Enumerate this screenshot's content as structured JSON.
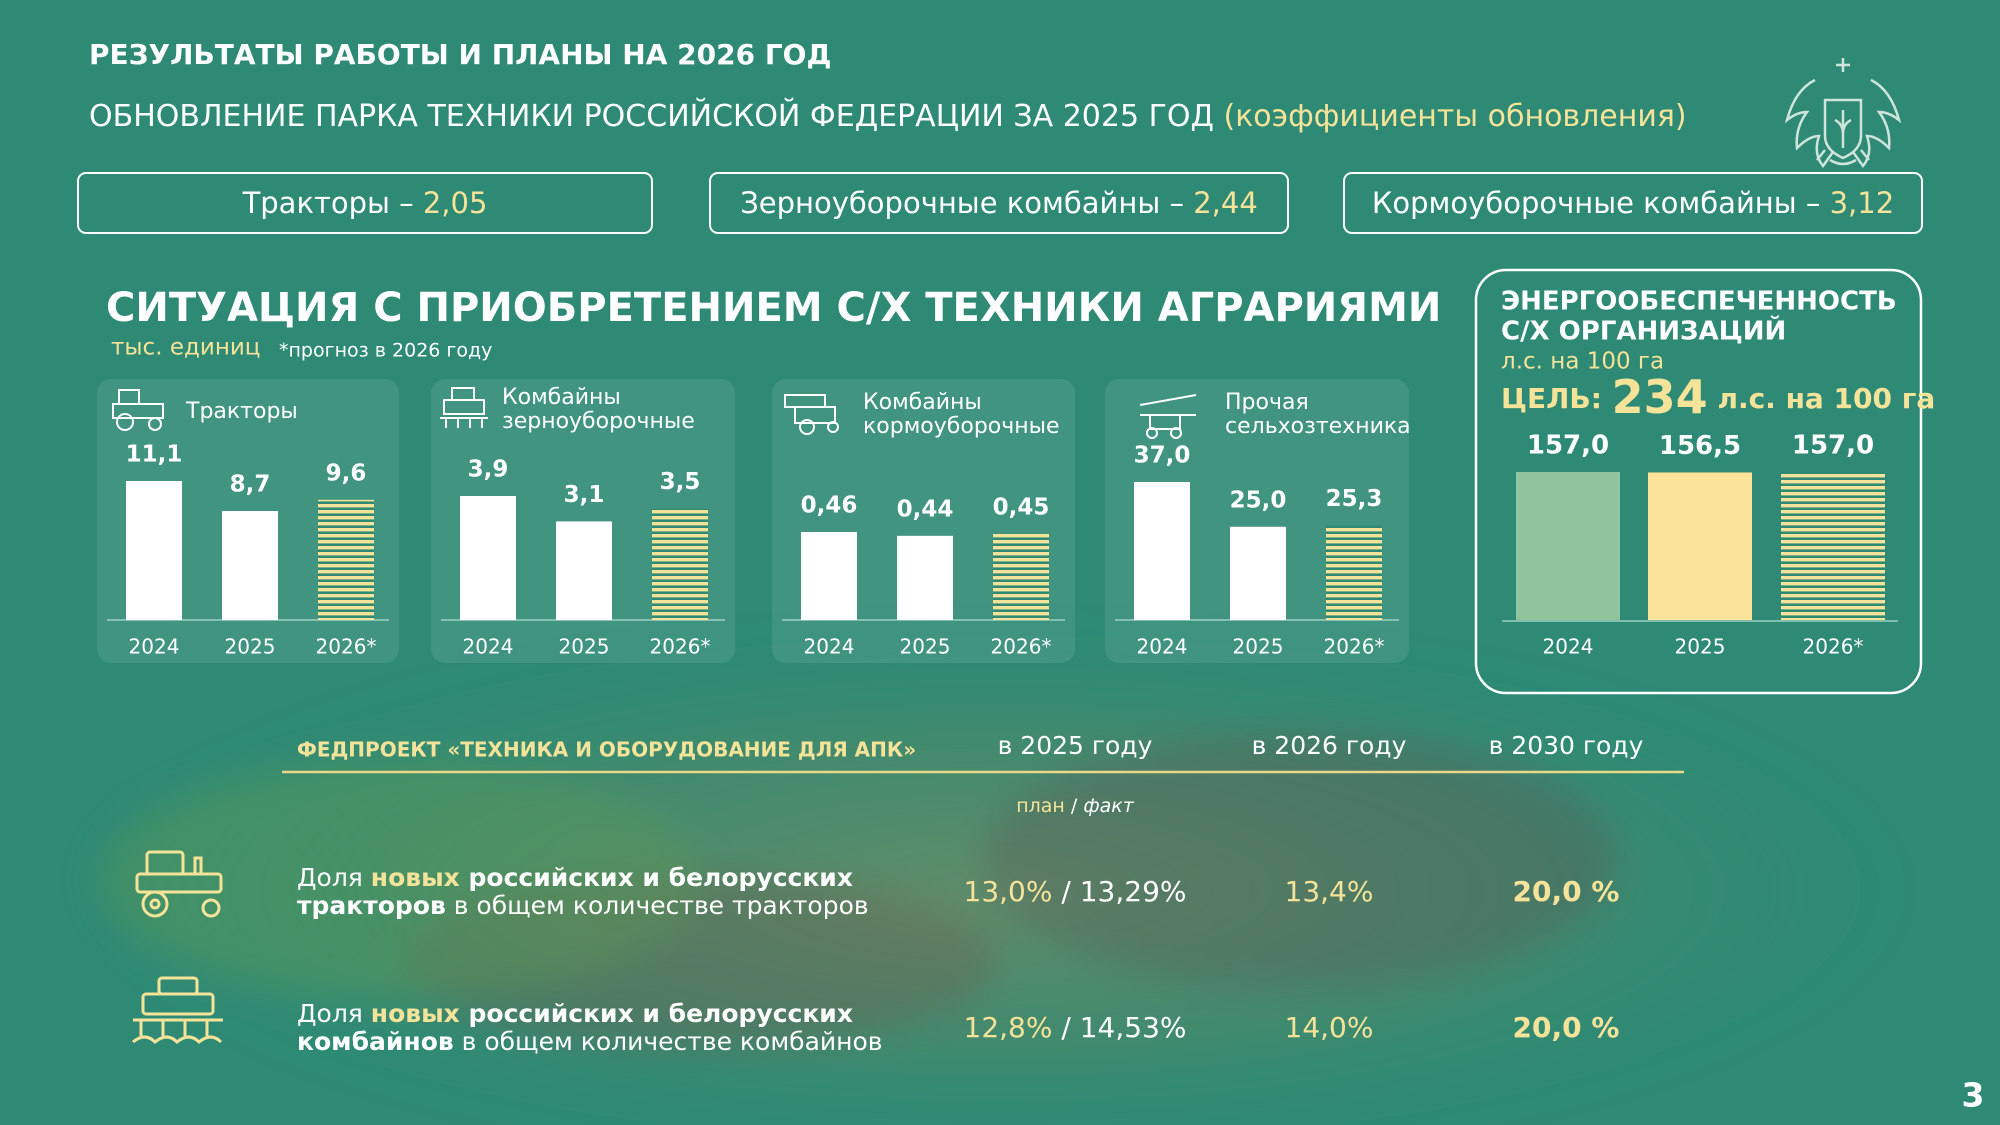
{
  "header": {
    "title": "РЕЗУЛЬТАТЫ РАБОТЫ И ПЛАНЫ НА 2026 ГОД",
    "subtitle": "ОБНОВЛЕНИЕ ПАРКА ТЕХНИКИ РОССИЙСКОЙ ФЕДЕРАЦИИ ЗА 2025 ГОД",
    "subtitle_note": "(коэффициенты обновления)"
  },
  "renewal": [
    {
      "label": "Тракторы –",
      "value": "2,05"
    },
    {
      "label": "Зерноуборочные комбайны –",
      "value": "2,44"
    },
    {
      "label": "Кормоуборочные комбайны –",
      "value": "3,12"
    }
  ],
  "section": {
    "title": "СИТУАЦИЯ С ПРИОБРЕТЕНИЕМ С/Х ТЕХНИКИ АГРАРИЯМИ",
    "unit": "тыс. единиц",
    "note": "*прогноз в 2026 году"
  },
  "chart_data": [
    {
      "type": "bar",
      "title": [
        "Тракторы"
      ],
      "categories": [
        "2024",
        "2025",
        "2026*"
      ],
      "values": [
        11.1,
        8.7,
        9.6
      ],
      "value_labels": [
        "11,1",
        "8,7",
        "9,6"
      ],
      "colors": [
        "#ffffff",
        "#ffffff",
        "#f5e39a"
      ],
      "hatched": [
        false,
        false,
        true
      ]
    },
    {
      "type": "bar",
      "title": [
        "Комбайны",
        "зерноуборочные"
      ],
      "categories": [
        "2024",
        "2025",
        "2026*"
      ],
      "values": [
        3.9,
        3.1,
        3.5
      ],
      "value_labels": [
        "3,9",
        "3,1",
        "3,5"
      ],
      "colors": [
        "#ffffff",
        "#ffffff",
        "#f5e39a"
      ],
      "hatched": [
        false,
        false,
        true
      ]
    },
    {
      "type": "bar",
      "title": [
        "Комбайны",
        "кормоуборочные"
      ],
      "categories": [
        "2024",
        "2025",
        "2026*"
      ],
      "values": [
        0.46,
        0.44,
        0.45
      ],
      "value_labels": [
        "0,46",
        "0,44",
        "0,45"
      ],
      "colors": [
        "#ffffff",
        "#ffffff",
        "#f5e39a"
      ],
      "hatched": [
        false,
        false,
        true
      ]
    },
    {
      "type": "bar",
      "title": [
        "Прочая",
        "сельхозтехника"
      ],
      "categories": [
        "2024",
        "2025",
        "2026*"
      ],
      "values": [
        37.0,
        25.0,
        25.3
      ],
      "value_labels": [
        "37,0",
        "25,0",
        "25,3"
      ],
      "colors": [
        "#ffffff",
        "#ffffff",
        "#f5e39a"
      ],
      "hatched": [
        false,
        false,
        true
      ]
    },
    {
      "type": "bar",
      "title": [
        "ЭНЕРГООБЕСПЕЧЕННОСТЬ",
        "С/Х ОРГАНИЗАЦИЙ"
      ],
      "unit": "л.с. на 100 га",
      "target": {
        "label": "ЦЕЛЬ:",
        "value": 234,
        "unit": "л.с. на 100 га"
      },
      "categories": [
        "2024",
        "2025",
        "2026*"
      ],
      "values": [
        157.0,
        156.5,
        157.0
      ],
      "value_labels": [
        "157,0",
        "156,5",
        "157,0"
      ],
      "colors": [
        "#8fc49c",
        "#fbe39a",
        "#f5e39a"
      ],
      "hatched": [
        false,
        false,
        true
      ]
    }
  ],
  "fedproject": {
    "title": "ФЕДПРОЕКТ «ТЕХНИКА И ОБОРУДОВАНИЕ ДЛЯ АПК»",
    "columns": [
      "в 2025 году",
      "в 2026 году",
      "в 2030 году"
    ],
    "plan": "план",
    "separator": "/",
    "fact": "факт",
    "rows": [
      {
        "label": [
          [
            "Доля ",
            "новых",
            " российских и белорусских"
          ],
          [
            "тракторов",
            " в общем количестве тракторов"
          ]
        ],
        "plan_2025": "13,0%",
        "fact_2025": "13,29%",
        "value_2026": "13,4%",
        "value_2030": "20,0 %"
      },
      {
        "label": [
          [
            "Доля ",
            "новых",
            " российских и белорусских"
          ],
          [
            "комбайнов",
            " в общем количестве комбайнов"
          ]
        ],
        "plan_2025": "12,8%",
        "fact_2025": "14,53%",
        "value_2026": "14,0%",
        "value_2030": "20,0 %"
      }
    ]
  },
  "page_number": "3"
}
